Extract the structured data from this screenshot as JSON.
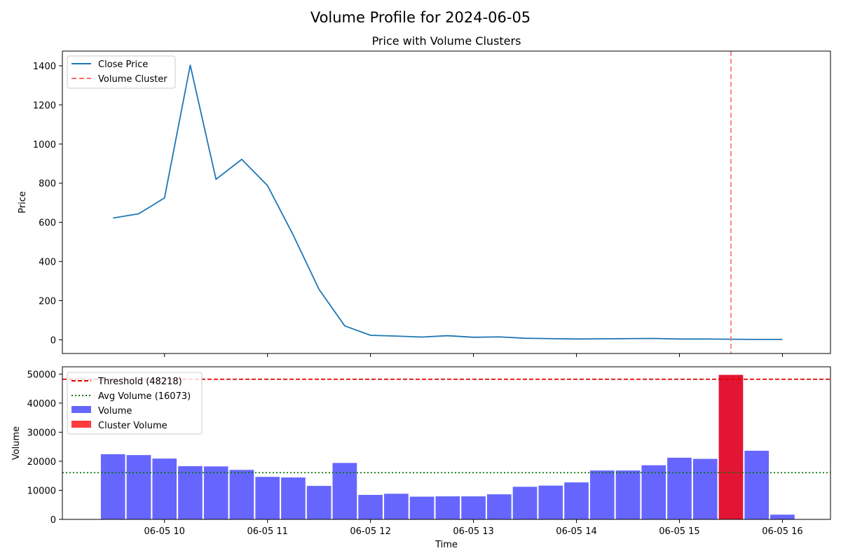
{
  "chart_data": {
    "title": "Volume Profile for 2024-06-05",
    "panels": [
      {
        "type": "line",
        "title": "Price with Volume Clusters",
        "xlabel": "",
        "ylabel": "Price",
        "x": [
          "09:30",
          "09:45",
          "10:00",
          "10:15",
          "10:30",
          "10:45",
          "11:00",
          "11:15",
          "11:30",
          "11:45",
          "12:00",
          "12:15",
          "12:30",
          "12:45",
          "13:00",
          "13:15",
          "13:30",
          "13:45",
          "14:00",
          "14:15",
          "14:30",
          "14:45",
          "15:00",
          "15:15",
          "15:30",
          "15:45",
          "16:00"
        ],
        "series": [
          {
            "name": "Close Price",
            "color": "#1f77b4",
            "values": [
              622,
              644,
              725,
              1403,
              820,
              922,
              788,
              535,
              258,
              71,
              23,
              19,
              14,
              21,
              13,
              15,
              8,
              6,
              4,
              5,
              6,
              7,
              4,
              4,
              3,
              2,
              2
            ]
          }
        ],
        "cluster_lines": {
          "name": "Volume Cluster",
          "color": "#ff6b6b",
          "x": [
            "15:30"
          ]
        },
        "ylim": [
          -70,
          1475
        ],
        "yticks": [
          0,
          200,
          400,
          600,
          800,
          1000,
          1200,
          1400
        ],
        "legend": "top-left"
      },
      {
        "type": "bar",
        "title": "",
        "xlabel": "Time",
        "ylabel": "Volume",
        "x": [
          "09:30",
          "09:45",
          "10:00",
          "10:15",
          "10:30",
          "10:45",
          "11:00",
          "11:15",
          "11:30",
          "11:45",
          "12:00",
          "12:15",
          "12:30",
          "12:45",
          "13:00",
          "13:15",
          "13:30",
          "13:45",
          "14:00",
          "14:15",
          "14:30",
          "14:45",
          "15:00",
          "15:15",
          "15:30",
          "15:45",
          "16:00"
        ],
        "series": [
          {
            "name": "Volume",
            "color": "#6666ff",
            "values": [
              22500,
              22200,
              21000,
              18400,
              18300,
              17100,
              14700,
              14500,
              11600,
              19500,
              8500,
              8900,
              7900,
              8000,
              8000,
              8700,
              11300,
              11700,
              12800,
              16900,
              16900,
              18700,
              21300,
              20900,
              49800,
              23700,
              1700
            ]
          }
        ],
        "cluster_volume": {
          "name": "Cluster Volume",
          "color": "#e31534",
          "legend_color": "#ff3b3b",
          "x": [
            "15:30"
          ]
        },
        "threshold": {
          "name": "Threshold (48218)",
          "value": 48218,
          "color": "#dd0000"
        },
        "average": {
          "name": "Avg Volume (16073)",
          "value": 16073,
          "color": "#007700"
        },
        "ylim": [
          0,
          52500
        ],
        "yticks": [
          0,
          10000,
          20000,
          30000,
          40000,
          50000
        ],
        "xtick_labels": [
          "06-05 10",
          "06-05 11",
          "06-05 12",
          "06-05 13",
          "06-05 14",
          "06-05 15",
          "06-05 16"
        ],
        "legend": "top-left"
      }
    ]
  }
}
